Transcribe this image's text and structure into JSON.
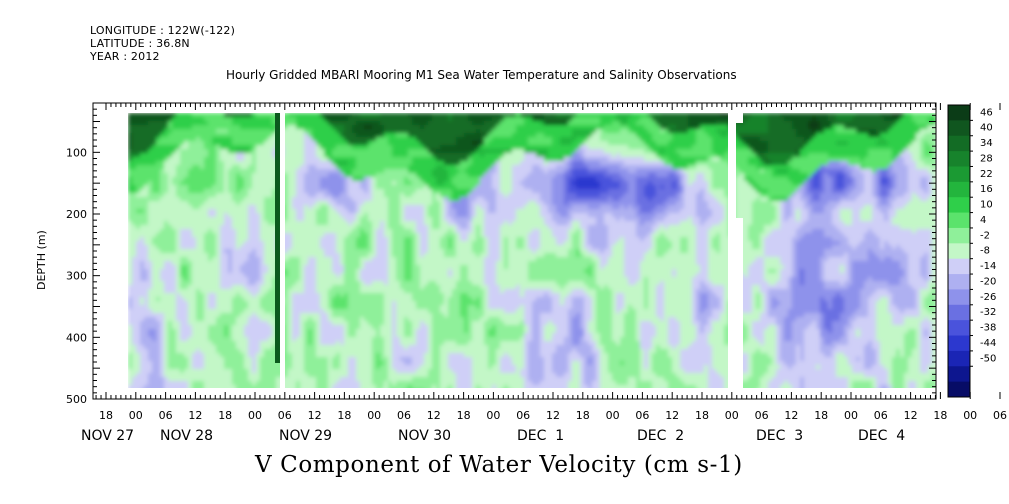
{
  "header": {
    "longitude": "LONGITUDE : 122W(-122)",
    "latitude": "LATITUDE : 36.8N",
    "year": "YEAR : 2012"
  },
  "title": "Hourly Gridded MBARI Mooring M1 Sea Water Temperature and Salinity Observations",
  "variable_label": "V Component of Water Velocity (cm s-1)",
  "chart_data": {
    "type": "heatmap",
    "title": "Hourly Gridded MBARI Mooring M1 Sea Water Temperature and Salinity Observations",
    "xlabel": "",
    "ylabel": "DEPTH (m)",
    "y_ticks": [
      100,
      200,
      300,
      400,
      500
    ],
    "y_range": [
      20,
      500
    ],
    "y_reversed": true,
    "x_hour_ticks": [
      "18",
      "00",
      "06",
      "12",
      "18",
      "00",
      "06",
      "12",
      "18",
      "00",
      "06",
      "12",
      "18",
      "00",
      "06",
      "12",
      "18",
      "00",
      "06",
      "12",
      "18",
      "00",
      "06",
      "12",
      "18",
      "00",
      "06",
      "12",
      "18",
      "00",
      "06",
      "12"
    ],
    "x_day_labels": [
      "NOV 27",
      "NOV 28",
      "NOV 29",
      "NOV 30",
      "DEC  1",
      "DEC  2",
      "DEC  3",
      "DEC  4"
    ],
    "colorbar": {
      "labels": [
        "46",
        "40",
        "34",
        "28",
        "22",
        "16",
        "10",
        "4",
        "-2",
        "-8",
        "-14",
        "-20",
        "-26",
        "-32",
        "-38",
        "-44",
        "-50"
      ],
      "colors": [
        "#0b3c17",
        "#10561f",
        "#136c25",
        "#17832c",
        "#1b9a33",
        "#23b53d",
        "#2fcf4a",
        "#5be36c",
        "#8ff09a",
        "#c3f7c7",
        "#cfcff7",
        "#aeb0f1",
        "#8e92eb",
        "#6a70e2",
        "#4a53dc",
        "#2c38cf",
        "#1a25b5",
        "#0d168f",
        "#070c66"
      ]
    },
    "description_values": {
      "surface_layer_depth_m": [
        20,
        100
      ],
      "surface_values_cm_s": [
        22,
        46
      ],
      "subsurface_range_cm_s": [
        -32,
        10
      ]
    }
  }
}
